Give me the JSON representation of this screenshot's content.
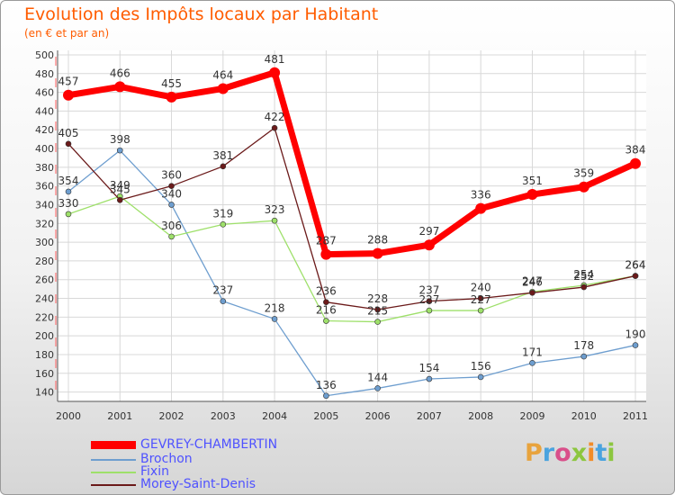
{
  "title": "Evolution des Impôts locaux par Habitant",
  "subtitle": "(en € et par an)",
  "brand": {
    "letters": [
      "P",
      "r",
      "o",
      "x",
      "i",
      "t",
      "i"
    ],
    "colors": [
      "#e8a33d",
      "#4aa3df",
      "#d94f8a",
      "#8cc63f",
      "#f28c28",
      "#4aa3df",
      "#8cc63f"
    ]
  },
  "chart_data": {
    "type": "line",
    "categories": [
      "2000",
      "2001",
      "2002",
      "2003",
      "2004",
      "2005",
      "2006",
      "2007",
      "2008",
      "2009",
      "2010",
      "2011"
    ],
    "ylim": [
      130,
      500
    ],
    "yticks": [
      140,
      160,
      180,
      200,
      220,
      240,
      260,
      280,
      300,
      320,
      340,
      360,
      380,
      400,
      420,
      440,
      460,
      480,
      500
    ],
    "series": [
      {
        "name": "GEVREY-CHAMBERTIN",
        "color": "#ff0000",
        "emphasis": true,
        "values": [
          457,
          466,
          455,
          464,
          481,
          287,
          288,
          297,
          336,
          351,
          359,
          384
        ]
      },
      {
        "name": "Brochon",
        "color": "#6e9ecf",
        "emphasis": false,
        "values": [
          354,
          398,
          340,
          237,
          218,
          136,
          144,
          154,
          156,
          171,
          178,
          190
        ]
      },
      {
        "name": "Fixin",
        "color": "#9ee06a",
        "emphasis": false,
        "values": [
          330,
          349,
          306,
          319,
          323,
          216,
          215,
          227,
          227,
          247,
          254,
          264
        ]
      },
      {
        "name": "Morey-Saint-Denis",
        "color": "#6b1a1a",
        "emphasis": false,
        "values": [
          405,
          345,
          360,
          381,
          422,
          236,
          228,
          237,
          240,
          246,
          252,
          264
        ]
      }
    ]
  }
}
